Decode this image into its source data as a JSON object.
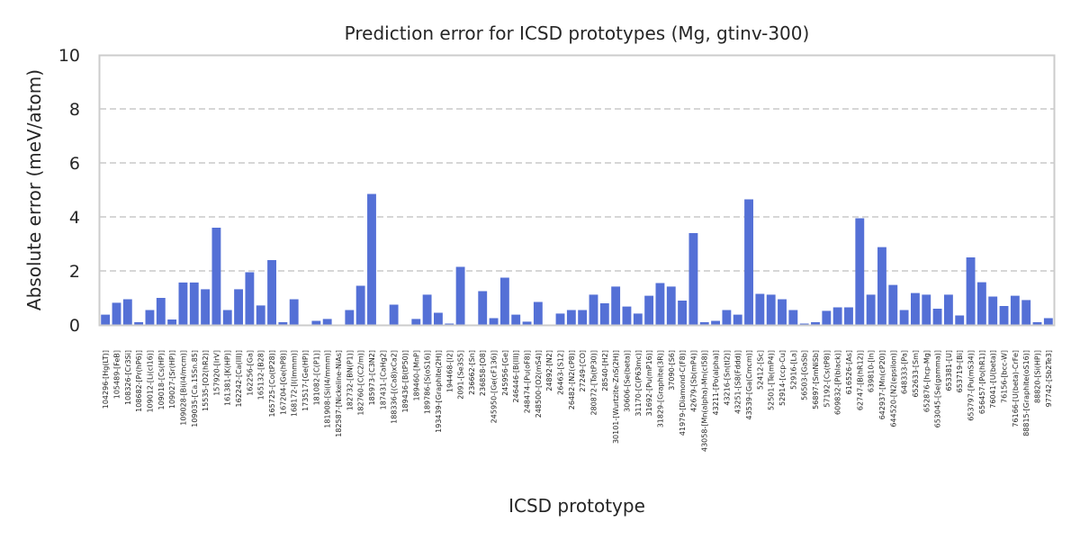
{
  "chart_data": {
    "type": "bar",
    "title": "Prediction error for ICSD prototypes (Mg, gtinv-300)",
    "xlabel": "ICSD prototype",
    "ylabel": "Absolute error (meV/atom)",
    "ylim": [
      0,
      10
    ],
    "yticks": [
      0,
      2,
      4,
      6,
      8,
      10
    ],
    "grid": "y-dashed",
    "bar_color": "#5470d6",
    "categories": [
      "104296-[Hg(LT)]",
      "105489-[FeB]",
      "108326-[Cr3Si]",
      "108682-[Pr(hP6)]",
      "109012-[Li(cI16)]",
      "109018-[Cs(HP)]",
      "109027-[Sr(HP)]",
      "109028-[Bi(I4/mcm)]",
      "109035-[Ca.15Sn.85]",
      "15535-[O2(hR2)]",
      "157920-[IrV]",
      "161381-[K(HP)]",
      "162242-[Ca(III)]",
      "162256-[Ga]",
      "165132-[B28]",
      "165725-[Co(tP28)]",
      "167204-[Ge(hP8)]",
      "168172-[I(Immm)]",
      "173517-[Ge(HP)]",
      "181082-[C(P1)]",
      "181908-[Si(I4/mmm)]",
      "182587-[Nickeline-NiAs]",
      "182732-[BN(P1)]",
      "182760-[C(C2/m)]",
      "185973-[C3N2]",
      "187431-[CaHg2]",
      "188336-[(Ca8)xCa2]",
      "189436-[B(tP50)]",
      "189460-[MnP]",
      "189786-[S(oS16)]",
      "193439-[Graphite(2H)]",
      "194468-[I2]",
      "2091-[Se3S5]",
      "236662-[Sn]",
      "236858-[O8]",
      "245950-[Ge(cF136)]",
      "245956-[Ge]",
      "246446-[B(III)]",
      "248474-[Pu(oF8)]",
      "248500-[O2(mS4)]",
      "24892-[N2]",
      "26463-[S12]",
      "26482-[N2(cP8)]",
      "27249-[CO]",
      "280872-[Ta(tP30)]",
      "28540-[H2]",
      "30101-[Wurtzite-ZnS(2H)]",
      "30606-[Se(beta)]",
      "31170-[C(P63mc)]",
      "31692-[Pu(mP16)]",
      "31829-[Graphite(3R)]",
      "37090-[S6]",
      "41979-[Diamond-C(F8)]",
      "42679-[Sb(mP4)]",
      "43058-[Mn(alpha)-Mn(cI58)]",
      "43211-[Po(alpha)]",
      "43216-[Sn(tI2)]",
      "43251-[S8(Fddd)]",
      "43539-[Ga(Cmcm)]",
      "52412-[Sc]",
      "52501-[Te(mP4)]",
      "52914-[ccp-Cu]",
      "52916-[La]",
      "56503-[GaSb]",
      "56897-[SmNiSb]",
      "57192-[Cs(tP8)]",
      "609832-[P(black)]",
      "616526-[As]",
      "62747-[B(hR12)]",
      "639810-[In]",
      "642937-[Mn(cP20)]",
      "644520-[N2(epsilon)]",
      "648333-[Pa]",
      "652633-[Sm]",
      "652876-[hcp-Mg]",
      "653045-[Se(gamma)]",
      "653381-[U]",
      "653719-[Bi]",
      "653797-[Pu(mS34)]",
      "656457-[Po(hR1)]",
      "76041-[U(beta)]",
      "76156-[bcc-W]",
      "76166-[U(beta)-CrFe]",
      "88815-[Graphite(oS16)]",
      "88820-[Si(HP)]",
      "97742-[Sb2Te3]"
    ],
    "values": [
      0.38,
      0.82,
      0.95,
      0.1,
      0.55,
      1.0,
      0.2,
      1.57,
      1.57,
      1.32,
      3.6,
      0.55,
      1.32,
      1.95,
      0.72,
      2.4,
      0.1,
      0.95,
      0.0,
      0.15,
      0.22,
      0.0,
      0.55,
      1.45,
      4.85,
      0.0,
      0.75,
      0.0,
      0.22,
      1.12,
      0.45,
      0.05,
      2.15,
      0.0,
      1.25,
      0.25,
      1.75,
      0.38,
      0.12,
      0.85,
      0.0,
      0.42,
      0.55,
      0.55,
      1.12,
      0.8,
      1.42,
      0.68,
      0.42,
      1.08,
      1.55,
      1.42,
      0.9,
      3.4,
      0.1,
      0.15,
      0.55,
      0.38,
      4.65,
      1.15,
      1.12,
      0.95,
      0.55,
      0.05,
      0.1,
      0.52,
      0.65,
      0.65,
      3.95,
      1.12,
      2.88,
      1.48,
      0.55,
      1.18,
      1.12,
      0.6,
      1.12,
      0.35,
      2.5,
      1.58,
      1.05,
      0.7,
      1.08,
      0.92,
      0.1,
      0.25
    ]
  }
}
